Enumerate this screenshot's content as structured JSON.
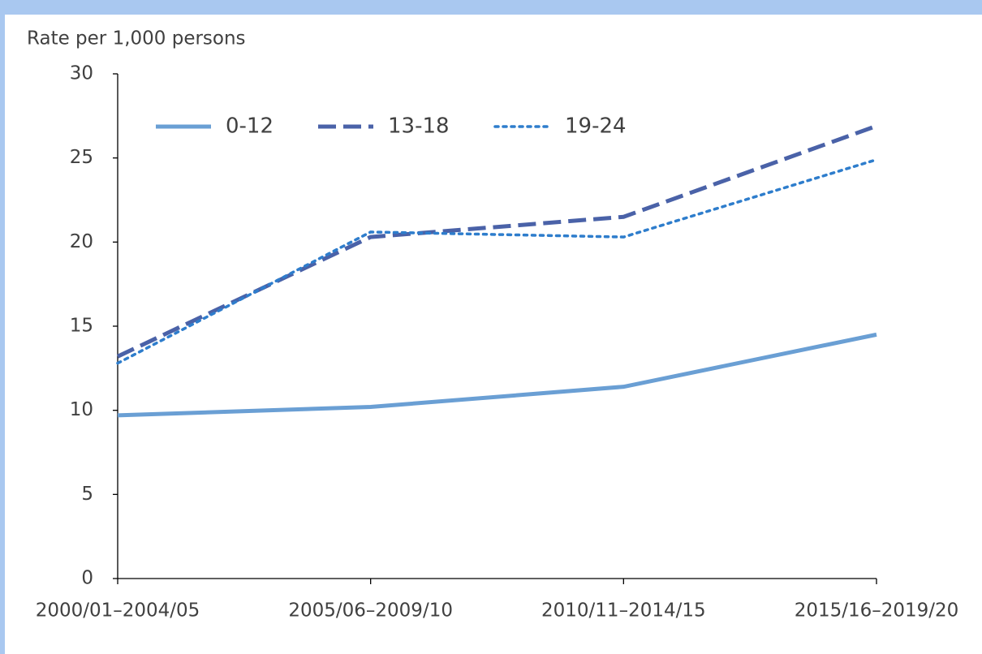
{
  "chart_data": {
    "type": "line",
    "y_axis_label": "Rate per 1,000 persons",
    "categories": [
      "2000/01–2004/05",
      "2005/06–2009/10",
      "2010/11–2014/15",
      "2015/16–2019/20"
    ],
    "series": [
      {
        "name": "0-12",
        "color": "#6a9fd4",
        "line_style": "solid",
        "values": [
          9.7,
          10.2,
          11.4,
          14.5
        ]
      },
      {
        "name": "13-18",
        "color": "#4a62a8",
        "line_style": "dashed",
        "values": [
          13.2,
          20.3,
          21.5,
          26.9
        ]
      },
      {
        "name": "19-24",
        "color": "#2e7dcc",
        "line_style": "dotted",
        "values": [
          12.8,
          20.6,
          20.3,
          24.9
        ]
      }
    ],
    "ylim": [
      0,
      30
    ],
    "yticks": [
      0,
      5,
      10,
      15,
      20,
      25,
      30
    ],
    "grid": false,
    "legend": "top"
  }
}
